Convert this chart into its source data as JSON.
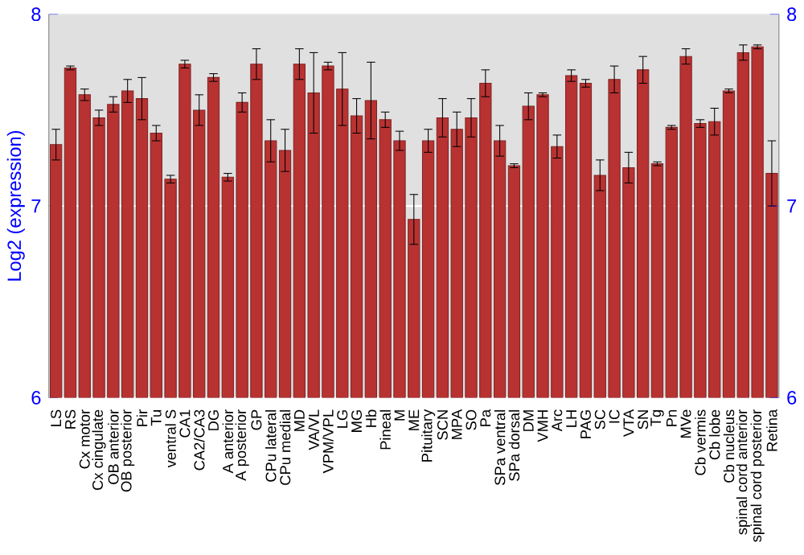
{
  "chart_data": {
    "type": "bar",
    "ylabel": "Log2 (expression)",
    "categories": [
      "LS",
      "RS",
      "Cx motor",
      "Cx cingulate",
      "OB anterior",
      "OB posterior",
      "Pir",
      "Tu",
      "ventral S",
      "CA1",
      "CA2/CA3",
      "DG",
      "A anterior",
      "A posterior",
      "GP",
      "CPu lateral",
      "CPu medial",
      "MD",
      "VA/VL",
      "VPM/VPL",
      "LG",
      "MG",
      "Hb",
      "Pineal",
      "M",
      "ME",
      "Pituitary",
      "SCN",
      "MPA",
      "SO",
      "Pa",
      "SPa ventral",
      "SPa dorsal",
      "DM",
      "VMH",
      "Arc",
      "LH",
      "PAG",
      "SC",
      "IC",
      "VTA",
      "SN",
      "Tg",
      "Pn",
      "MVe",
      "Cb vermis",
      "Cb lobe",
      "Cb nucleus",
      "spinal cord anterior",
      "spinal cord posterior",
      "Retina"
    ],
    "values": [
      7.32,
      7.72,
      7.58,
      7.46,
      7.53,
      7.6,
      7.56,
      7.38,
      7.14,
      7.74,
      7.5,
      7.67,
      7.15,
      7.54,
      7.74,
      7.34,
      7.29,
      7.74,
      7.59,
      7.73,
      7.61,
      7.47,
      7.55,
      7.45,
      7.34,
      6.93,
      7.34,
      7.46,
      7.4,
      7.46,
      7.64,
      7.34,
      7.21,
      7.52,
      7.58,
      7.31,
      7.68,
      7.64,
      7.16,
      7.66,
      7.2,
      7.71,
      7.22,
      7.41,
      7.78,
      7.43,
      7.44,
      7.6,
      7.8,
      7.83,
      7.17
    ],
    "errors": [
      0.08,
      0.01,
      0.03,
      0.04,
      0.04,
      0.06,
      0.11,
      0.04,
      0.02,
      0.02,
      0.08,
      0.02,
      0.02,
      0.05,
      0.08,
      0.11,
      0.11,
      0.08,
      0.21,
      0.02,
      0.19,
      0.09,
      0.2,
      0.04,
      0.05,
      0.13,
      0.06,
      0.1,
      0.09,
      0.1,
      0.07,
      0.08,
      0.01,
      0.07,
      0.01,
      0.06,
      0.03,
      0.02,
      0.08,
      0.07,
      0.08,
      0.07,
      0.01,
      0.01,
      0.04,
      0.02,
      0.07,
      0.01,
      0.04,
      0.01,
      0.17
    ],
    "color": "#b83232",
    "ylim": [
      6,
      8
    ],
    "yticks": [
      6,
      7,
      8
    ],
    "y2lim": [
      6,
      8
    ],
    "y2ticks": [
      6,
      7,
      8
    ],
    "grid": "y"
  }
}
